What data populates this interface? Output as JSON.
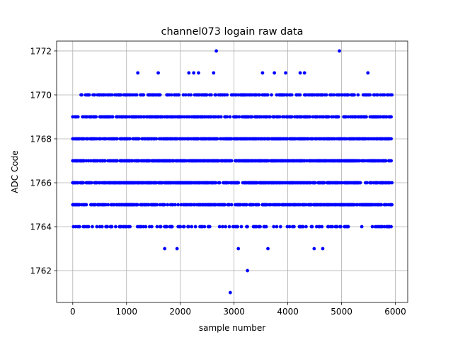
{
  "chart_data": {
    "type": "scatter",
    "title": "channel073 logain raw data",
    "xlabel": "sample number",
    "ylabel": "ADC Code",
    "xlim": [
      -300,
      6230
    ],
    "ylim": [
      1760.55,
      1772.45
    ],
    "xticks": [
      0,
      1000,
      2000,
      3000,
      4000,
      5000,
      6000
    ],
    "yticks": [
      1762,
      1764,
      1766,
      1768,
      1770,
      1772
    ],
    "grid": true,
    "marker_color": "#0000ff",
    "sample_range": [
      0,
      5940
    ],
    "dense_levels": [
      {
        "y": 1769,
        "density": 0.62
      },
      {
        "y": 1768,
        "density": 0.72
      },
      {
        "y": 1767,
        "density": 0.72
      },
      {
        "y": 1766,
        "density": 0.72
      },
      {
        "y": 1765,
        "density": 0.62
      }
    ],
    "sparse_levels": [
      {
        "y": 1770,
        "density": 0.45
      },
      {
        "y": 1764,
        "density": 0.35
      }
    ],
    "outliers": [
      {
        "x": 1210,
        "y": 1771
      },
      {
        "x": 1590,
        "y": 1771
      },
      {
        "x": 2160,
        "y": 1771
      },
      {
        "x": 2250,
        "y": 1771
      },
      {
        "x": 2340,
        "y": 1771
      },
      {
        "x": 2620,
        "y": 1771
      },
      {
        "x": 3530,
        "y": 1771
      },
      {
        "x": 3750,
        "y": 1771
      },
      {
        "x": 3960,
        "y": 1771
      },
      {
        "x": 4230,
        "y": 1771
      },
      {
        "x": 4310,
        "y": 1771
      },
      {
        "x": 5490,
        "y": 1771
      },
      {
        "x": 2670,
        "y": 1772
      },
      {
        "x": 4960,
        "y": 1772
      },
      {
        "x": 1710,
        "y": 1763
      },
      {
        "x": 1940,
        "y": 1763
      },
      {
        "x": 3080,
        "y": 1763
      },
      {
        "x": 3630,
        "y": 1763
      },
      {
        "x": 4490,
        "y": 1763
      },
      {
        "x": 4650,
        "y": 1763
      },
      {
        "x": 3250,
        "y": 1762
      },
      {
        "x": 2930,
        "y": 1761
      }
    ]
  }
}
